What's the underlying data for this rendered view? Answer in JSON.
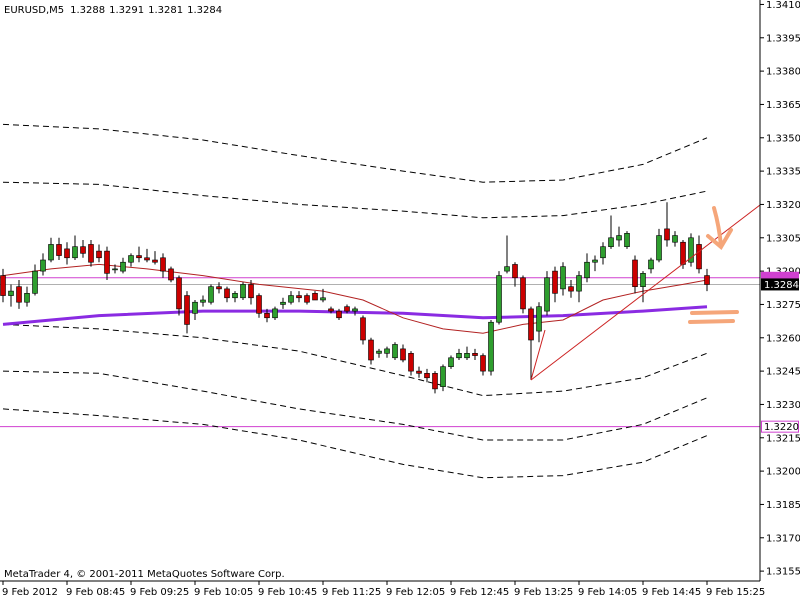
{
  "chart_data": {
    "type": "candlestick",
    "title": "EURUSD,M5",
    "footer": "MetaTrader 4, © 2001-2011 MetaQuotes Software Corp.",
    "categories": [
      "9 Feb 2012",
      null,
      null,
      null,
      null,
      null,
      null,
      null,
      "9 Feb 08:45",
      null,
      null,
      null,
      null,
      null,
      null,
      null,
      "9 Feb 09:25",
      null,
      null,
      null,
      null,
      null,
      null,
      null,
      "9 Feb 10:05",
      null,
      null,
      null,
      null,
      null,
      null,
      null,
      "9 Feb 10:45",
      null,
      null,
      null,
      null,
      null,
      null,
      null,
      "9 Feb 11:25",
      null,
      null,
      null,
      null,
      null,
      null,
      null,
      "9 Feb 12:05",
      null,
      null,
      null,
      null,
      null,
      null,
      null,
      "9 Feb 12:45",
      null,
      null,
      null,
      null,
      null,
      null,
      null,
      "9 Feb 13:25",
      null,
      null,
      null,
      null,
      null,
      null,
      null,
      "9 Feb 14:05",
      null,
      null,
      null,
      null,
      null,
      null,
      null,
      "9 Feb 14:45",
      null,
      null,
      null,
      null,
      null,
      null,
      null,
      "9 Feb 15:25"
    ],
    "open": [
      1.3288,
      1.3279,
      1.3283,
      1.3276,
      1.328,
      1.329,
      1.3295,
      1.3302,
      1.33,
      1.3296,
      1.3301,
      1.3302,
      1.3299,
      1.3299,
      1.3291,
      1.329,
      1.3294,
      1.3297,
      1.3296,
      1.3295,
      1.3296,
      1.3291,
      1.3287,
      1.3279,
      1.3271,
      1.3276,
      1.3276,
      1.3283,
      1.3282,
      1.3278,
      1.3278,
      1.3284,
      1.3279,
      1.3271,
      1.3269,
      1.3275,
      1.3276,
      1.3279,
      1.3279,
      1.328,
      1.3277,
      1.3273,
      1.3272,
      1.3274,
      1.3272,
      1.3269,
      1.3259,
      1.3253,
      1.3253,
      1.3251,
      1.3255,
      1.3253,
      1.3245,
      1.3244,
      1.3244,
      1.3238,
      1.3247,
      1.3251,
      1.3251,
      1.3253,
      1.3252,
      1.3245,
      1.3267,
      1.329,
      1.3293,
      1.3287,
      1.3273,
      1.3263,
      1.3272,
      1.329,
      1.3282,
      1.3283,
      1.3281,
      1.3287,
      1.3294,
      1.3296,
      1.3301,
      1.3304,
      1.3301,
      1.3295,
      1.3283,
      1.3291,
      1.3295,
      1.3309,
      1.3303,
      1.3303,
      1.3294,
      1.3302,
      1.3288
    ],
    "high": [
      1.3291,
      1.3284,
      1.3286,
      1.3283,
      1.3293,
      1.3298,
      1.3305,
      1.3305,
      1.3303,
      1.3306,
      1.3304,
      1.3304,
      1.3302,
      1.3301,
      1.3293,
      1.3296,
      1.3298,
      1.3301,
      1.33,
      1.3299,
      1.3298,
      1.3292,
      1.3288,
      1.3281,
      1.3277,
      1.3279,
      1.3284,
      1.3285,
      1.3283,
      1.3281,
      1.3285,
      1.3286,
      1.328,
      1.3273,
      1.3274,
      1.3278,
      1.3281,
      1.3281,
      1.328,
      1.3281,
      1.3282,
      1.3274,
      1.3273,
      1.3275,
      1.3274,
      1.327,
      1.326,
      1.3255,
      1.3256,
      1.3258,
      1.3257,
      1.3254,
      1.3247,
      1.3246,
      1.3245,
      1.3248,
      1.3252,
      1.3255,
      1.3256,
      1.3255,
      1.3253,
      1.3268,
      1.329,
      1.3306,
      1.3294,
      1.3288,
      1.3274,
      1.3276,
      1.329,
      1.3292,
      1.3294,
      1.3286,
      1.329,
      1.3298,
      1.3297,
      1.3303,
      1.3315,
      1.331,
      1.3308,
      1.3297,
      1.329,
      1.3296,
      1.3309,
      1.3321,
      1.3308,
      1.3304,
      1.3307,
      1.3306,
      1.3291
    ],
    "low": [
      1.3276,
      1.3274,
      1.3273,
      1.3274,
      1.3279,
      1.3288,
      1.3294,
      1.3295,
      1.3293,
      1.3295,
      1.3296,
      1.3292,
      1.3294,
      1.3286,
      1.3289,
      1.3289,
      1.3292,
      1.3294,
      1.3294,
      1.3293,
      1.3287,
      1.3285,
      1.327,
      1.3262,
      1.3268,
      1.3274,
      1.3275,
      1.328,
      1.3276,
      1.3276,
      1.3277,
      1.3275,
      1.3269,
      1.3267,
      1.3268,
      1.3273,
      1.3275,
      1.3276,
      1.3275,
      1.3277,
      1.3276,
      1.3271,
      1.3268,
      1.3271,
      1.327,
      1.3257,
      1.3248,
      1.3251,
      1.3251,
      1.325,
      1.3249,
      1.3243,
      1.3242,
      1.324,
      1.3235,
      1.3236,
      1.3246,
      1.325,
      1.325,
      1.325,
      1.3243,
      1.3243,
      1.3266,
      1.3289,
      1.3283,
      1.3271,
      1.3241,
      1.3258,
      1.327,
      1.3276,
      1.3279,
      1.3278,
      1.3276,
      1.3285,
      1.329,
      1.3293,
      1.33,
      1.3301,
      1.33,
      1.328,
      1.3276,
      1.3289,
      1.3294,
      1.3301,
      1.3301,
      1.3291,
      1.3292,
      1.3289,
      1.3281
    ],
    "close": [
      1.3279,
      1.3281,
      1.3276,
      1.328,
      1.329,
      1.3295,
      1.3302,
      1.3297,
      1.3296,
      1.3301,
      1.3298,
      1.3294,
      1.3296,
      1.3289,
      1.3291,
      1.3294,
      1.3297,
      1.3296,
      1.3295,
      1.3294,
      1.329,
      1.3286,
      1.3273,
      1.3266,
      1.3276,
      1.3277,
      1.3283,
      1.3282,
      1.3278,
      1.328,
      1.3284,
      1.3278,
      1.3271,
      1.3269,
      1.3273,
      1.3276,
      1.3279,
      1.3278,
      1.3276,
      1.3277,
      1.3278,
      1.3272,
      1.3269,
      1.3272,
      1.3273,
      1.3259,
      1.325,
      1.3254,
      1.3255,
      1.3257,
      1.325,
      1.3245,
      1.3244,
      1.3242,
      1.3237,
      1.3247,
      1.3251,
      1.3253,
      1.3253,
      1.3252,
      1.3245,
      1.3267,
      1.3288,
      1.3292,
      1.3287,
      1.3273,
      1.3259,
      1.3274,
      1.3287,
      1.328,
      1.3292,
      1.3281,
      1.3288,
      1.3294,
      1.3295,
      1.3301,
      1.3305,
      1.3306,
      1.3307,
      1.3283,
      1.3289,
      1.3295,
      1.3306,
      1.3304,
      1.3306,
      1.3293,
      1.3305,
      1.3291,
      1.3284
    ],
    "up_color": "#2e9e2e",
    "down_color": "#cc0000",
    "overlays": [
      {
        "x": [
          0,
          12,
          25,
          37,
          50,
          60,
          70,
          80,
          88
        ],
        "values": [
          1.3356,
          1.3354,
          1.3349,
          1.3342,
          1.3335,
          1.333,
          1.3331,
          1.3338,
          1.335
        ],
        "color": "#000000",
        "style": "dashed",
        "width": 1
      },
      {
        "x": [
          0,
          12,
          25,
          37,
          50,
          60,
          70,
          80,
          88
        ],
        "values": [
          1.333,
          1.3329,
          1.3324,
          1.332,
          1.3317,
          1.3314,
          1.3315,
          1.332,
          1.3326
        ],
        "color": "#000000",
        "style": "dashed",
        "width": 1
      },
      {
        "x": [
          0,
          12,
          25,
          37,
          50,
          60,
          70,
          80,
          88
        ],
        "values": [
          1.3266,
          1.3264,
          1.326,
          1.3254,
          1.3243,
          1.3234,
          1.3236,
          1.3242,
          1.3253
        ],
        "color": "#000000",
        "style": "dashed",
        "width": 1
      },
      {
        "x": [
          0,
          12,
          25,
          37,
          50,
          60,
          70,
          80,
          88
        ],
        "values": [
          1.3245,
          1.3244,
          1.3236,
          1.3228,
          1.3221,
          1.3214,
          1.3214,
          1.3221,
          1.3233
        ],
        "color": "#000000",
        "style": "dashed",
        "width": 1
      },
      {
        "x": [
          0,
          12,
          25,
          37,
          50,
          60,
          70,
          80,
          88
        ],
        "values": [
          1.3228,
          1.3225,
          1.3221,
          1.3214,
          1.3203,
          1.3197,
          1.3198,
          1.3204,
          1.3216
        ],
        "color": "#000000",
        "style": "dashed",
        "width": 1
      },
      {
        "x": [
          0,
          12,
          25,
          37,
          50,
          60,
          70,
          80,
          88
        ],
        "values": [
          1.3266,
          1.327,
          1.3272,
          1.3272,
          1.3271,
          1.3269,
          1.327,
          1.3272,
          1.3274
        ],
        "color": "#8a2be2",
        "style": "solid",
        "width": 3
      },
      {
        "x": [
          0,
          6,
          12,
          18,
          25,
          32,
          40,
          45,
          50,
          55,
          60,
          65,
          70,
          75,
          80,
          85,
          88
        ],
        "values": [
          1.3288,
          1.3291,
          1.3293,
          1.3291,
          1.3288,
          1.3284,
          1.3281,
          1.3277,
          1.3269,
          1.3264,
          1.3262,
          1.3266,
          1.3268,
          1.3277,
          1.3281,
          1.3284,
          1.3286
        ],
        "color": "#b22222",
        "style": "solid",
        "width": 1
      }
    ],
    "hlines": [
      {
        "value": 1.3287,
        "color": "#d040d0"
      },
      {
        "value": 1.322,
        "color": "#d040d0",
        "label": "1.3220"
      }
    ],
    "ylim": [
      1.3151,
      1.3412
    ],
    "yticks": [
      1.3155,
      {
        "value": 1.317,
        "label": "1.3170"
      },
      1.3185,
      {
        "value": 1.32,
        "label": "1.3200"
      },
      1.3215,
      {
        "value": 1.323,
        "label": "1.3230"
      },
      1.3245,
      {
        "value": 1.326,
        "label": "1.3260"
      },
      1.3275,
      {
        "value": 1.329,
        "label": "1.3290"
      },
      1.3305,
      {
        "value": 1.332,
        "label": "1.3320"
      },
      1.3335,
      {
        "value": 1.335,
        "label": "1.3350"
      },
      1.3365,
      {
        "value": 1.338,
        "label": "1.3380"
      },
      1.3395,
      {
        "value": 1.341,
        "label": "1.3410"
      }
    ],
    "grid": false
  }
}
